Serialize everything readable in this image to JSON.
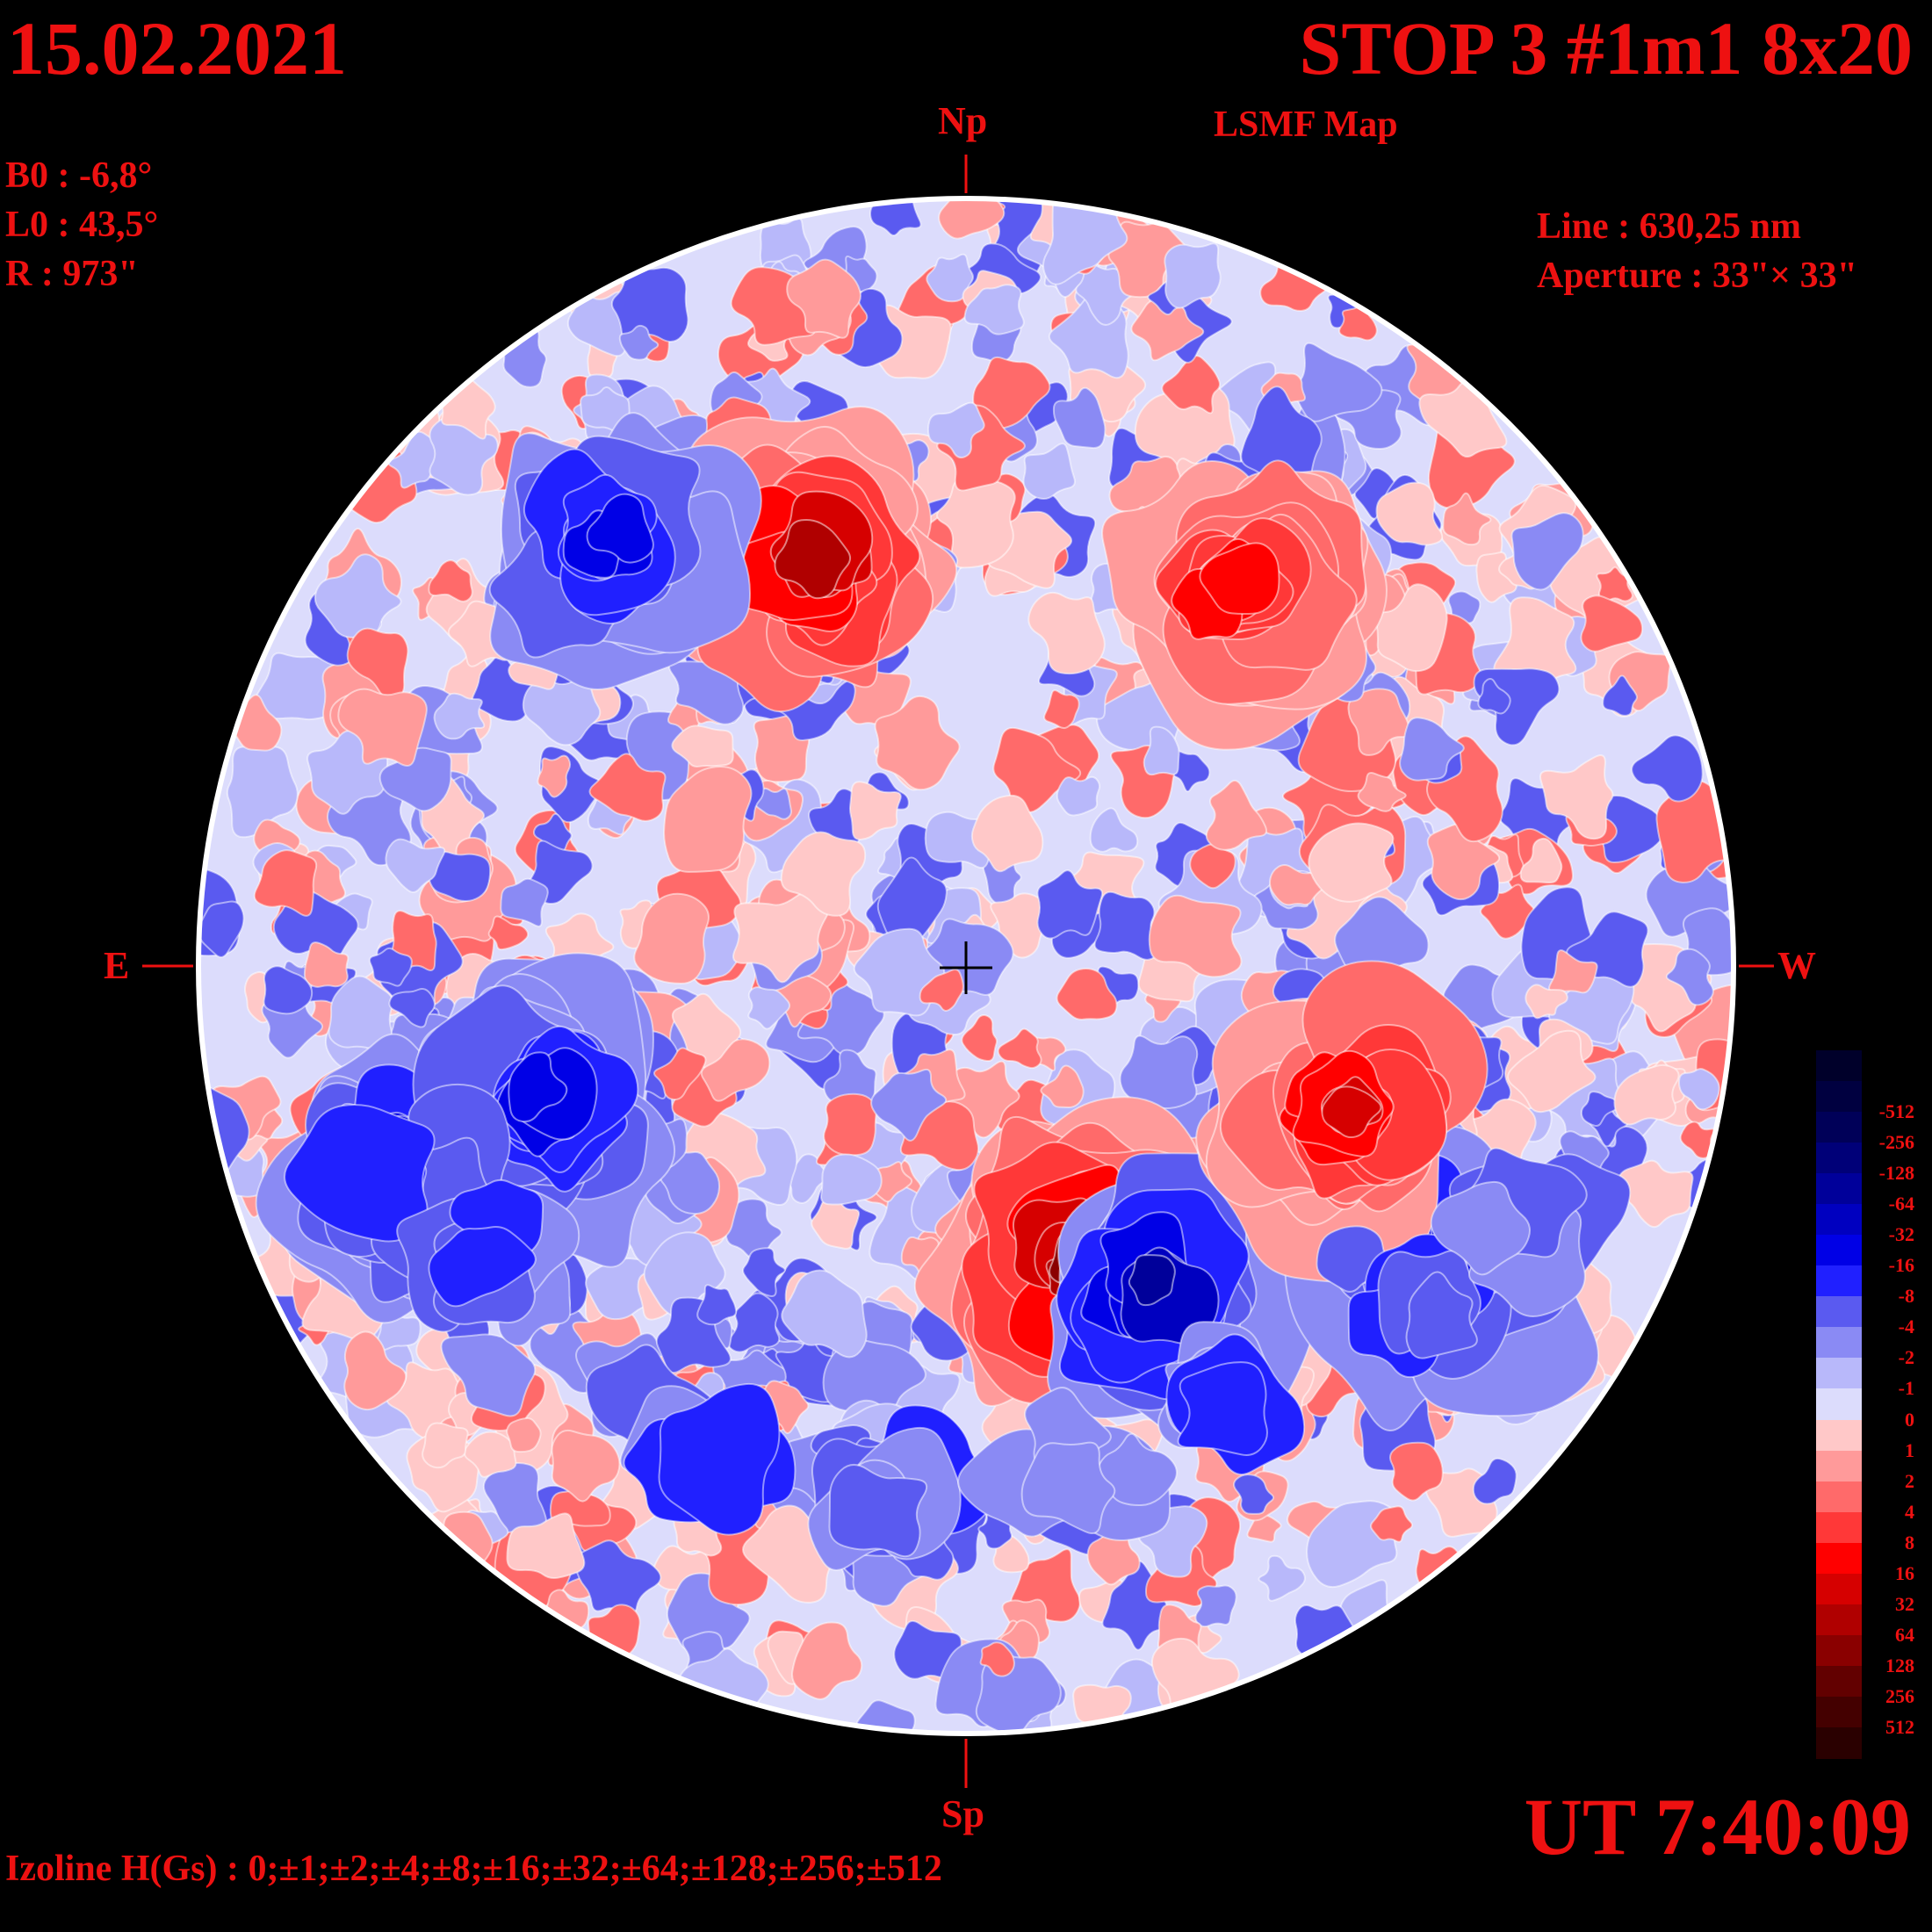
{
  "header": {
    "date": "15.02.2021",
    "title": "STOP 3 #1m1 8x20",
    "subtitle": "LSMF  Map"
  },
  "params": {
    "b0": "B0 : -6,8°",
    "l0": "L0 : 43,5°",
    "r": "R  : 973\""
  },
  "instrument": {
    "line": "Line :  630,25 nm",
    "aperture": "Aperture : 33\"× 33\""
  },
  "orientation": {
    "north": "Np",
    "south": "Sp",
    "east": "E",
    "west": "W"
  },
  "footer": {
    "ut": "UT 7:40:09",
    "izoline": "Izoline H(Gs) : 0;±1;±2;±4;±8;±16;±32;±64;±128;±256;±512"
  },
  "colorbar": {
    "levels": [
      {
        "label": "",
        "color": "#00002a"
      },
      {
        "label": "-512",
        "color": "#000040"
      },
      {
        "label": "-256",
        "color": "#000058"
      },
      {
        "label": "-128",
        "color": "#000078"
      },
      {
        "label": "-64",
        "color": "#00009a"
      },
      {
        "label": "-32",
        "color": "#0000c0"
      },
      {
        "label": "-16",
        "color": "#0000e6"
      },
      {
        "label": "-8",
        "color": "#2020ff"
      },
      {
        "label": "-4",
        "color": "#5a5af0"
      },
      {
        "label": "-2",
        "color": "#8a8af4"
      },
      {
        "label": "-1",
        "color": "#b8b8fa"
      },
      {
        "label": "0",
        "color": "#dcdcfc"
      },
      {
        "label": "1",
        "color": "#ffc8c8"
      },
      {
        "label": "2",
        "color": "#ff9a9a"
      },
      {
        "label": "4",
        "color": "#ff6a6a"
      },
      {
        "label": "8",
        "color": "#ff3838"
      },
      {
        "label": "16",
        "color": "#ff0000"
      },
      {
        "label": "32",
        "color": "#d60000"
      },
      {
        "label": "64",
        "color": "#b00000"
      },
      {
        "label": "128",
        "color": "#8a0000"
      },
      {
        "label": "256",
        "color": "#620000"
      },
      {
        "label": "512",
        "color": "#440000"
      },
      {
        "label": "",
        "color": "#2a0000"
      }
    ]
  },
  "map_data": {
    "description_type": "line-of-sight magnetic field contour map of solar disk",
    "positive_color": "#ff2020",
    "negative_color": "#2020ff",
    "features": [
      {
        "polarity": "positive",
        "strength": 64,
        "region": "north-central",
        "lon": -0.2,
        "lat": 0.52
      },
      {
        "polarity": "negative",
        "strength": 16,
        "region": "north-east",
        "lon": -0.46,
        "lat": 0.55
      },
      {
        "polarity": "negative",
        "strength": 32,
        "region": "south-east",
        "lon": -0.72,
        "lat": -0.28
      },
      {
        "polarity": "negative",
        "strength": 16,
        "region": "south-east belt",
        "lon": -0.55,
        "lat": -0.18
      },
      {
        "polarity": "positive",
        "strength": 128,
        "region": "south-central",
        "lon": 0.15,
        "lat": -0.39
      },
      {
        "polarity": "negative",
        "strength": 64,
        "region": "south-central",
        "lon": 0.24,
        "lat": -0.42
      },
      {
        "polarity": "negative",
        "strength": 16,
        "region": "south-west belt",
        "lon": 0.62,
        "lat": -0.38
      },
      {
        "polarity": "positive",
        "strength": 32,
        "region": "west",
        "lon": 0.5,
        "lat": -0.2
      },
      {
        "polarity": "positive",
        "strength": 16,
        "region": "north-west",
        "lon": 0.35,
        "lat": 0.5
      }
    ]
  }
}
